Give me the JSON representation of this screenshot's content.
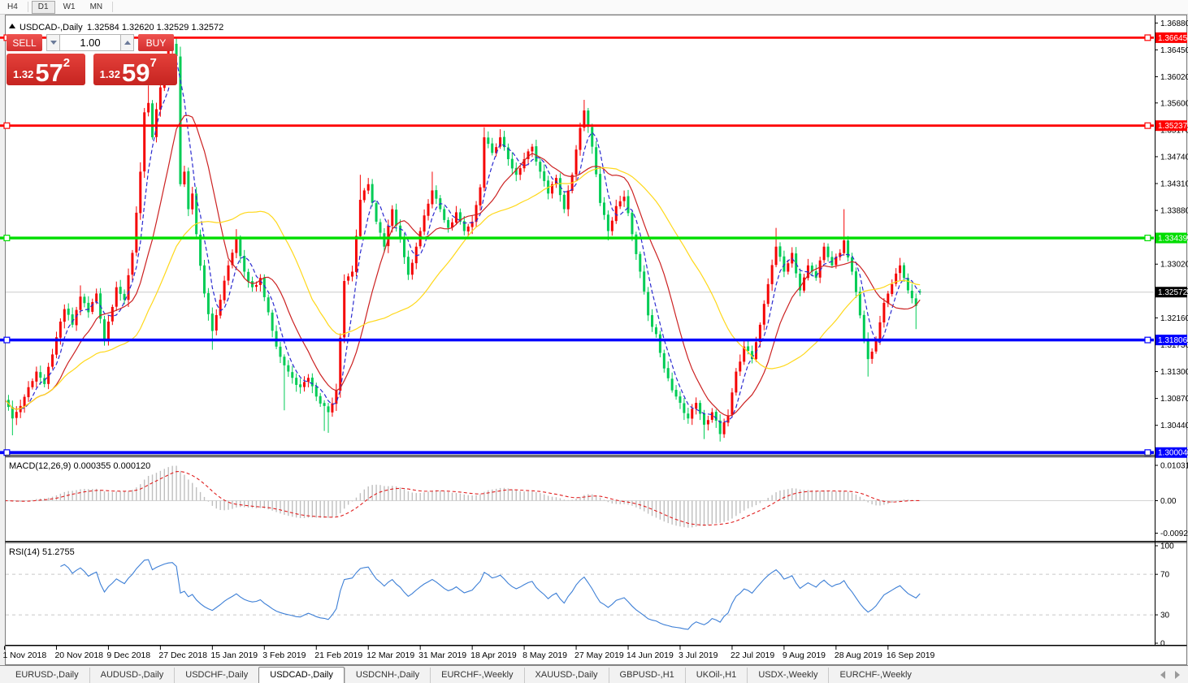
{
  "toolbar": {
    "timeframes": [
      "H4",
      "D1",
      "W1",
      "MN"
    ],
    "active_index": 1
  },
  "chart": {
    "title": {
      "symbol": "USDCAD-,Daily",
      "ohlc": "1.32584 1.32620 1.32529 1.32572"
    },
    "colors": {
      "bull": "#f50505",
      "bear": "#00cc55",
      "ma_fast": "#2b2bd0",
      "ma_mid": "#cc2222",
      "ma_slow": "#ffd81a",
      "current_line": "#cccccc",
      "current_tag_bg": "#000000",
      "macd_hist": "#bfbfbf",
      "macd_signal": "#e02020",
      "rsi_line": "#3d7fd6",
      "red_level": "#fe0000",
      "green_level": "#00dd00",
      "blue_level": "#0000fe"
    }
  },
  "trade_panel": {
    "sell_label": "SELL",
    "buy_label": "BUY",
    "volume": "1.00",
    "sell_price": {
      "prefix": "1.32",
      "big": "57",
      "sup": "2"
    },
    "buy_price": {
      "prefix": "1.32",
      "big": "59",
      "sup": "7"
    }
  },
  "price_axis": {
    "ticks": [
      "1.36880",
      "1.36450",
      "1.36020",
      "1.35600",
      "1.35170",
      "1.34740",
      "1.34310",
      "1.33880",
      "1.33450",
      "1.33020",
      "1.32590",
      "1.32160",
      "1.31730",
      "1.31300",
      "1.30870",
      "1.30440",
      "1.30010"
    ],
    "current": {
      "label": "1.32572",
      "price": 1.32572
    }
  },
  "levels": [
    {
      "price": 1.36645,
      "label": "1.36645",
      "color_key": "red_level",
      "width": 2.8
    },
    {
      "price": 1.35237,
      "label": "1.35237",
      "color_key": "red_level",
      "width": 2.8
    },
    {
      "price": 1.33439,
      "label": "1.33439",
      "color_key": "green_level",
      "width": 3.4
    },
    {
      "price": 1.31806,
      "label": "1.31806",
      "color_key": "blue_level",
      "width": 3.4
    },
    {
      "price": 1.30004,
      "label": "1.30004",
      "color_key": "blue_level",
      "width": 3.8
    }
  ],
  "indicators": {
    "macd": {
      "label": "MACD(12,26,9) 0.000355 0.000120",
      "params": [
        12,
        26,
        9
      ],
      "axis": [
        "0.010311",
        "0.00",
        "-0.009203"
      ]
    },
    "rsi": {
      "label": "RSI(14) 51.2755",
      "period": 14,
      "axis": [
        "100",
        "70",
        "30",
        "0"
      ],
      "guide_levels": [
        70,
        30
      ]
    }
  },
  "chart_data": {
    "type": "candlestick",
    "symbol": "USDCAD",
    "timeframe": "Daily",
    "bar_count": 230,
    "conventions": {
      "bull_color": "red",
      "bear_color": "green"
    },
    "y_range": [
      1.3001,
      1.3688
    ],
    "x_labels": [
      {
        "label": "1 Nov 2018",
        "bar": 0
      },
      {
        "label": "20 Nov 2018",
        "bar": 13
      },
      {
        "label": "9 Dec 2018",
        "bar": 26
      },
      {
        "label": "27 Dec 2018",
        "bar": 39
      },
      {
        "label": "15 Jan 2019",
        "bar": 52
      },
      {
        "label": "3 Feb 2019",
        "bar": 65
      },
      {
        "label": "21 Feb 2019",
        "bar": 78
      },
      {
        "label": "12 Mar 2019",
        "bar": 91
      },
      {
        "label": "31 Mar 2019",
        "bar": 104
      },
      {
        "label": "18 Apr 2019",
        "bar": 117
      },
      {
        "label": "8 May 2019",
        "bar": 130
      },
      {
        "label": "27 May 2019",
        "bar": 143
      },
      {
        "label": "14 Jun 2019",
        "bar": 156
      },
      {
        "label": "3 Jul 2019",
        "bar": 169
      },
      {
        "label": "22 Jul 2019",
        "bar": 182
      },
      {
        "label": "9 Aug 2019",
        "bar": 195
      },
      {
        "label": "28 Aug 2019",
        "bar": 208
      },
      {
        "label": "16 Sep 2019",
        "bar": 221
      }
    ],
    "last_candle": {
      "open": 1.32584,
      "high": 1.3262,
      "low": 1.32529,
      "close": 1.32572
    },
    "waypoints": [
      [
        0,
        1.3085
      ],
      [
        2,
        1.3055,
        null,
        1.3028
      ],
      [
        4,
        1.3075
      ],
      [
        6,
        1.3105
      ],
      [
        8,
        1.313
      ],
      [
        10,
        1.311
      ],
      [
        13,
        1.3185
      ],
      [
        15,
        1.323
      ],
      [
        17,
        1.3205
      ],
      [
        19,
        1.325,
        1.3268,
        null
      ],
      [
        21,
        1.3225
      ],
      [
        23,
        1.3255
      ],
      [
        25,
        1.318
      ],
      [
        26,
        1.321
      ],
      [
        28,
        1.3265
      ],
      [
        30,
        1.3245
      ],
      [
        32,
        1.332
      ],
      [
        34,
        1.345,
        1.3465,
        null
      ],
      [
        35,
        1.3545
      ],
      [
        36,
        1.356,
        1.3588,
        null
      ],
      [
        37,
        1.3505
      ],
      [
        38,
        1.355
      ],
      [
        39,
        1.3585
      ],
      [
        40,
        1.362
      ],
      [
        41,
        1.3645
      ],
      [
        42,
        1.3655,
        1.36645,
        null
      ],
      [
        43,
        1.3635
      ],
      [
        44,
        1.343,
        1.365,
        null
      ],
      [
        45,
        1.345
      ],
      [
        46,
        1.339
      ],
      [
        47,
        1.3415
      ],
      [
        48,
        1.335
      ],
      [
        50,
        1.3255
      ],
      [
        52,
        1.3195,
        null,
        1.3165
      ],
      [
        54,
        1.3245
      ],
      [
        56,
        1.33
      ],
      [
        58,
        1.3345,
        1.3358,
        null
      ],
      [
        60,
        1.329
      ],
      [
        62,
        1.3265
      ],
      [
        64,
        1.328
      ],
      [
        66,
        1.3225
      ],
      [
        68,
        1.317
      ],
      [
        70,
        1.314,
        null,
        1.3068
      ],
      [
        72,
        1.312
      ],
      [
        74,
        1.3105
      ],
      [
        76,
        1.312
      ],
      [
        78,
        1.309
      ],
      [
        80,
        1.3075,
        null,
        1.3035
      ],
      [
        81,
        1.3065,
        null,
        1.3032
      ],
      [
        83,
        1.31
      ],
      [
        85,
        1.3275
      ],
      [
        87,
        1.329
      ],
      [
        89,
        1.3405,
        1.3445,
        null
      ],
      [
        91,
        1.343
      ],
      [
        93,
        1.337
      ],
      [
        95,
        1.333
      ],
      [
        97,
        1.339
      ],
      [
        99,
        1.3345
      ],
      [
        101,
        1.3285
      ],
      [
        103,
        1.333
      ],
      [
        105,
        1.338
      ],
      [
        107,
        1.342,
        1.345,
        null
      ],
      [
        109,
        1.339
      ],
      [
        111,
        1.336
      ],
      [
        113,
        1.3385
      ],
      [
        115,
        1.3355
      ],
      [
        117,
        1.337
      ],
      [
        119,
        1.3425
      ],
      [
        120,
        1.3505,
        1.3521,
        null
      ],
      [
        122,
        1.348
      ],
      [
        124,
        1.3505,
        1.3518,
        null
      ],
      [
        126,
        1.347
      ],
      [
        128,
        1.3445
      ],
      [
        130,
        1.347
      ],
      [
        132,
        1.349
      ],
      [
        134,
        1.345
      ],
      [
        136,
        1.3415
      ],
      [
        138,
        1.344
      ],
      [
        140,
        1.339
      ],
      [
        142,
        1.3445
      ],
      [
        144,
        1.352
      ],
      [
        145,
        1.3548,
        1.3565,
        null
      ],
      [
        147,
        1.349
      ],
      [
        149,
        1.34
      ],
      [
        151,
        1.3355,
        null,
        1.334
      ],
      [
        153,
        1.3395
      ],
      [
        155,
        1.341
      ],
      [
        157,
        1.335
      ],
      [
        159,
        1.329
      ],
      [
        161,
        1.322
      ],
      [
        163,
        1.319
      ],
      [
        165,
        1.3135
      ],
      [
        167,
        1.31
      ],
      [
        169,
        1.308
      ],
      [
        171,
        1.3055
      ],
      [
        173,
        1.308
      ],
      [
        175,
        1.3045,
        null,
        1.3022
      ],
      [
        177,
        1.3065
      ],
      [
        179,
        1.303,
        null,
        1.3018
      ],
      [
        181,
        1.306
      ],
      [
        183,
        1.313
      ],
      [
        185,
        1.317
      ],
      [
        187,
        1.315
      ],
      [
        189,
        1.3205
      ],
      [
        191,
        1.327
      ],
      [
        193,
        1.333,
        1.336,
        null
      ],
      [
        195,
        1.329
      ],
      [
        197,
        1.332
      ],
      [
        199,
        1.326
      ],
      [
        201,
        1.33
      ],
      [
        203,
        1.328
      ],
      [
        205,
        1.333
      ],
      [
        207,
        1.33
      ],
      [
        209,
        1.332
      ],
      [
        210,
        1.334,
        1.339,
        null
      ],
      [
        212,
        1.329
      ],
      [
        214,
        1.322
      ],
      [
        216,
        1.315,
        null,
        1.3122
      ],
      [
        218,
        1.318
      ],
      [
        220,
        1.324
      ],
      [
        222,
        1.327
      ],
      [
        224,
        1.33,
        1.3312,
        null
      ],
      [
        226,
        1.326
      ],
      [
        228,
        1.3235,
        null,
        1.3198
      ],
      [
        229,
        1.32572
      ]
    ],
    "moving_averages": [
      {
        "type": "SMA",
        "period": 5,
        "style": "dashed",
        "color_key": "ma_fast"
      },
      {
        "type": "SMA",
        "period": 13,
        "style": "solid",
        "color_key": "ma_mid"
      },
      {
        "type": "SMA",
        "period": 34,
        "style": "solid",
        "color_key": "ma_slow"
      }
    ]
  },
  "tabs": {
    "items": [
      "EURUSD-,Daily",
      "AUDUSD-,Daily",
      "USDCHF-,Daily",
      "USDCAD-,Daily",
      "USDCNH-,Daily",
      "EURCHF-,Weekly",
      "XAUUSD-,Daily",
      "GBPUSD-,H1",
      "UKOil-,H1",
      "USDX-,Weekly",
      "EURCHF-,Weekly"
    ],
    "active_index": 3
  }
}
